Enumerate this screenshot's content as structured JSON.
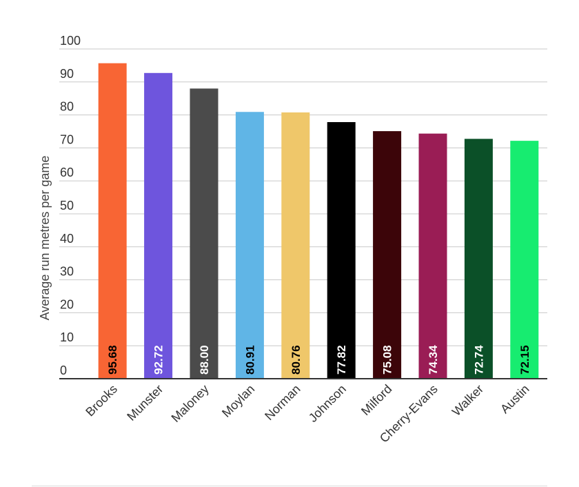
{
  "chart_data": {
    "type": "bar",
    "ylabel": "Average run metres per game",
    "xlabel": "",
    "ylim": [
      0,
      100
    ],
    "yticks": [
      0,
      10,
      20,
      30,
      40,
      50,
      60,
      70,
      80,
      90,
      100
    ],
    "grid": true,
    "categories": [
      "Brooks",
      "Munster",
      "Maloney",
      "Moylan",
      "Norman",
      "Johnson",
      "Milford",
      "Cherry-Evans",
      "Walker",
      "Austin"
    ],
    "values": [
      95.68,
      92.72,
      88.0,
      80.91,
      80.76,
      77.82,
      75.08,
      74.34,
      72.74,
      72.15
    ],
    "value_labels": [
      "95.68",
      "92.72",
      "88.00",
      "80.91",
      "80.76",
      "77.82",
      "75.08",
      "74.34",
      "72.74",
      "72.15"
    ],
    "colors": [
      "#f86534",
      "#6e55dd",
      "#4b4b4b",
      "#60b5e6",
      "#efc76a",
      "#000000",
      "#3c0509",
      "#9a1d55",
      "#0b5028",
      "#17ec70"
    ],
    "value_label_colors": [
      "#000000",
      "#ffffff",
      "#ffffff",
      "#000000",
      "#000000",
      "#ffffff",
      "#ffffff",
      "#ffffff",
      "#ffffff",
      "#000000"
    ]
  }
}
